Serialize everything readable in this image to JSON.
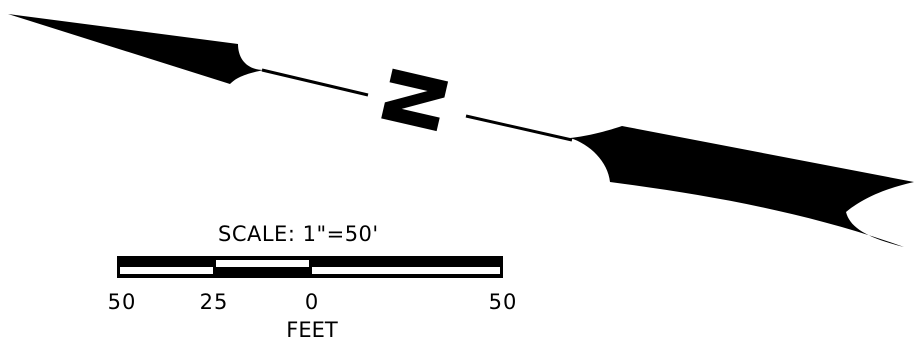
{
  "north_arrow": {
    "letter": "N"
  },
  "scale": {
    "title": "SCALE: 1\"=50'",
    "units": "FEET",
    "ticks": [
      "50",
      "25",
      "0",
      "50"
    ]
  },
  "colors": {
    "ink": "#000000",
    "paper": "#ffffff"
  }
}
